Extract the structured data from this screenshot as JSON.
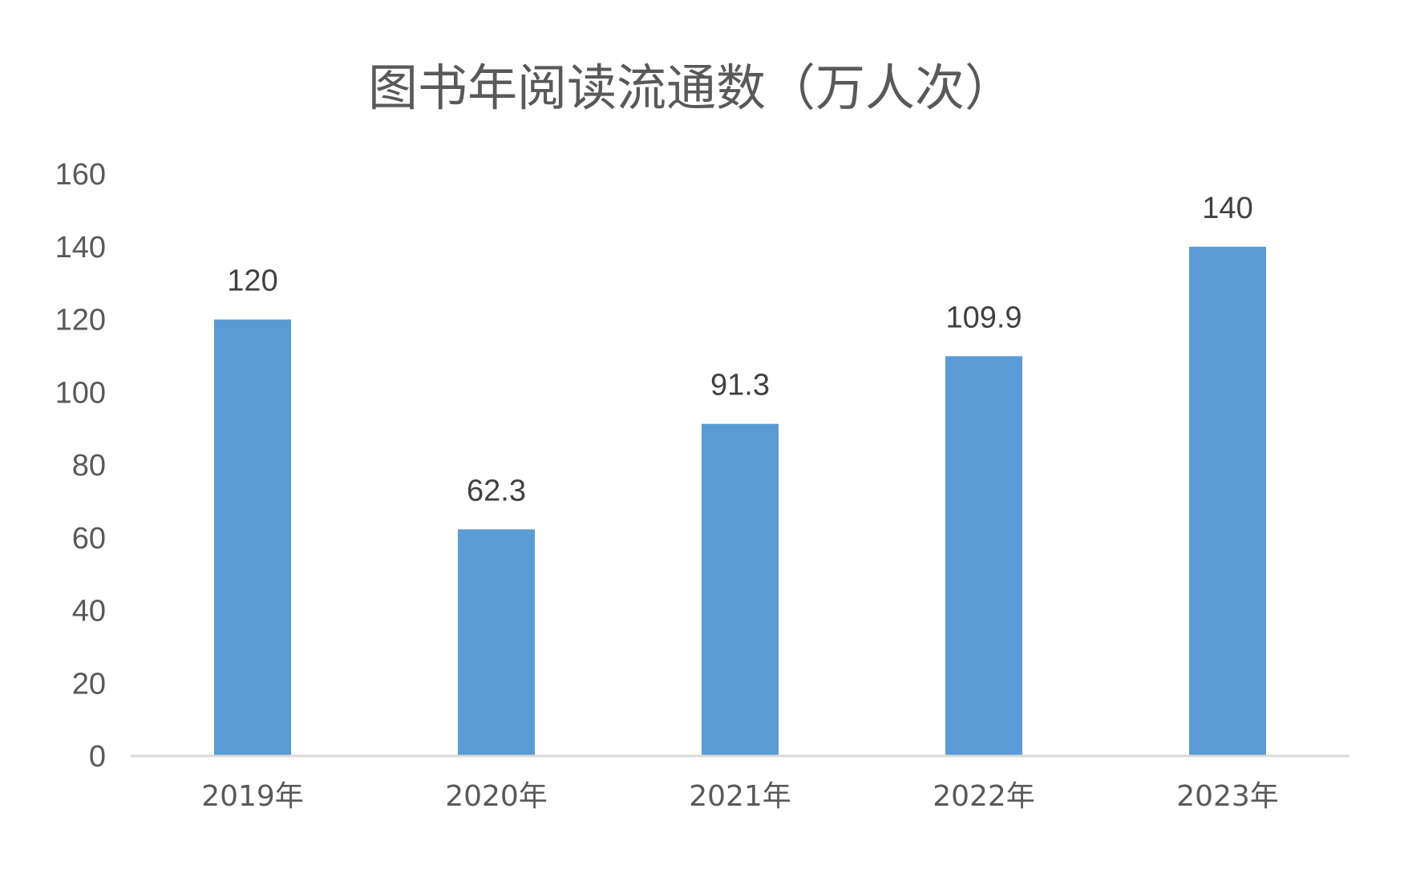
{
  "chart_data": {
    "type": "bar",
    "title": "图书年阅读流通数（万人次）",
    "xlabel": "",
    "ylabel": "",
    "categories": [
      "2019年",
      "2020年",
      "2021年",
      "2022年",
      "2023年"
    ],
    "series": [
      {
        "values": [
          120,
          62.3,
          91.3,
          109.9,
          140
        ],
        "color": "#5B9BD5"
      }
    ],
    "data_labels": [
      "120",
      "62.3",
      "91.3",
      "109.9",
      "140"
    ],
    "y_ticks": [
      "0",
      "20",
      "40",
      "60",
      "80",
      "100",
      "120",
      "140",
      "160"
    ],
    "ylim": [
      0,
      160
    ],
    "grid": false,
    "legend": "none",
    "colors": {
      "bar": "#5B9BD5",
      "axis": "#D9D9D9",
      "text": "#595959"
    }
  }
}
